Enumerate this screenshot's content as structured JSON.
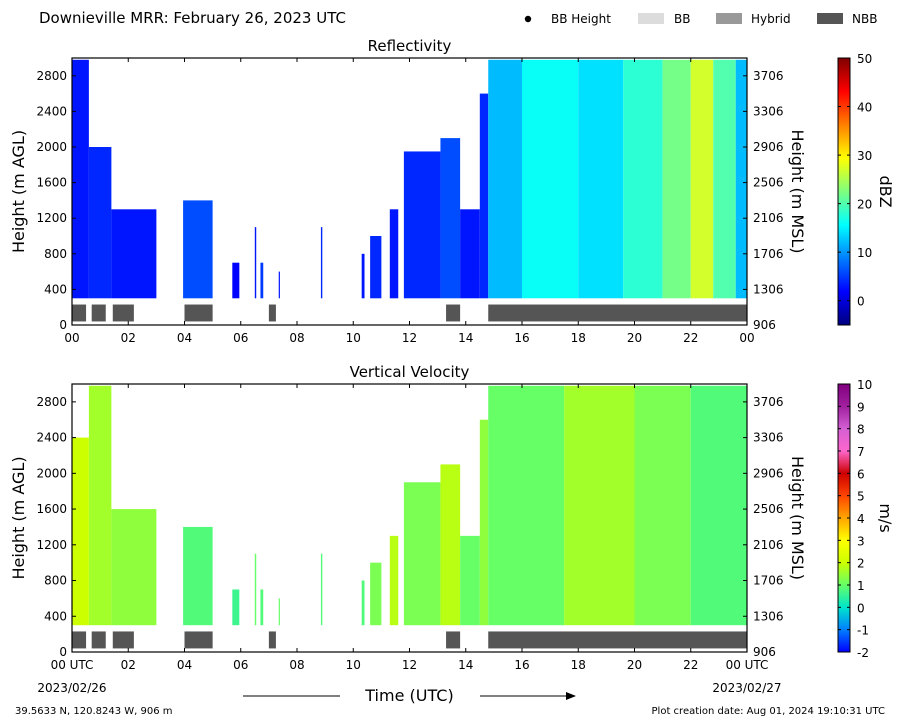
{
  "header": {
    "site_title": "Downieville MRR:  February 26, 2023 UTC",
    "legend": [
      {
        "label": "BB Height",
        "kind": "dot",
        "color": "#000000"
      },
      {
        "label": "BB",
        "kind": "bar",
        "color": "#dcdcdc"
      },
      {
        "label": "Hybrid",
        "kind": "bar",
        "color": "#999999"
      },
      {
        "label": "NBB",
        "kind": "bar",
        "color": "#555555"
      }
    ]
  },
  "footer": {
    "location": "39.5633 N, 120.8243 W, 906 m",
    "creation": "Plot creation date: Aug 01, 2024 19:10:31 UTC",
    "start_date": "2023/02/26",
    "end_date": "2023/02/27"
  },
  "chart_data": [
    {
      "type": "heatmap",
      "title": "Reflectivity",
      "ylabel": "Height (m AGL)",
      "y2label": "Height (m MSL)",
      "xlabel": "",
      "ylim": [
        0,
        3000
      ],
      "x_ticks": [
        "00",
        "02",
        "04",
        "06",
        "08",
        "10",
        "12",
        "14",
        "16",
        "18",
        "20",
        "22",
        "00"
      ],
      "y_ticks": [
        0,
        400,
        800,
        1200,
        1600,
        2000,
        2400,
        2800
      ],
      "y2_ticks": [
        906,
        1306,
        1706,
        2106,
        2506,
        2906,
        3306,
        3706
      ],
      "colorbar": {
        "label": "dBZ",
        "ticks": [
          0,
          10,
          20,
          30,
          40,
          50
        ],
        "min": -5,
        "max": 50
      },
      "colorbar_colors": [
        "#00007f",
        "#0000ff",
        "#007fff",
        "#00ffff",
        "#7fff7f",
        "#ffff00",
        "#ff7f00",
        "#ff0000",
        "#7f0000"
      ],
      "precip_blocks": [
        {
          "start": 0.0,
          "end": 6.0,
          "top": 3000,
          "value": 3
        },
        {
          "start": 6.0,
          "end": 14.0,
          "top": 2000,
          "value": 4
        },
        {
          "start": 14.0,
          "end": 30.0,
          "top": 1300,
          "value": 3
        },
        {
          "start": 39.5,
          "end": 50.0,
          "top": 1400,
          "value": 6
        },
        {
          "start": 57.0,
          "end": 59.5,
          "top": 700,
          "value": 2
        },
        {
          "start": 65.0,
          "end": 65.5,
          "top": 1100,
          "value": 3
        },
        {
          "start": 67.0,
          "end": 68.0,
          "top": 700,
          "value": 5
        },
        {
          "start": 73.5,
          "end": 73.8,
          "top": 600,
          "value": 3
        },
        {
          "start": 88.5,
          "end": 89.0,
          "top": 1100,
          "value": 4
        },
        {
          "start": 103.0,
          "end": 104.0,
          "top": 800,
          "value": 3
        },
        {
          "start": 106.0,
          "end": 110.0,
          "top": 1000,
          "value": 4
        },
        {
          "start": 113.0,
          "end": 116.0,
          "top": 1300,
          "value": 3
        },
        {
          "start": 118.0,
          "end": 131.0,
          "top": 1950,
          "value": 4
        },
        {
          "start": 131.0,
          "end": 138.0,
          "top": 2100,
          "value": 6
        },
        {
          "start": 138.0,
          "end": 145.0,
          "top": 1300,
          "value": 3
        },
        {
          "start": 145.0,
          "end": 148.0,
          "top": 2600,
          "value": 4
        },
        {
          "start": 148.0,
          "end": 160.0,
          "top": 3000,
          "value": 12
        },
        {
          "start": 160.0,
          "end": 180.0,
          "top": 3000,
          "value": 16
        },
        {
          "start": 180.0,
          "end": 196.0,
          "top": 3000,
          "value": 14
        },
        {
          "start": 196.0,
          "end": 210.0,
          "top": 3000,
          "value": 18
        },
        {
          "start": 210.0,
          "end": 220.0,
          "top": 3000,
          "value": 22
        },
        {
          "start": 220.0,
          "end": 228.0,
          "top": 3000,
          "value": 27
        },
        {
          "start": 228.0,
          "end": 236.0,
          "top": 3000,
          "value": 20
        },
        {
          "start": 236.0,
          "end": 240.0,
          "top": 3000,
          "value": 12
        }
      ],
      "bright_band_class": [
        {
          "start": 0.0,
          "end": 5.0,
          "type": "NBB"
        },
        {
          "start": 7.0,
          "end": 12.0,
          "type": "NBB"
        },
        {
          "start": 14.5,
          "end": 22.0,
          "type": "NBB"
        },
        {
          "start": 40.0,
          "end": 50.0,
          "type": "NBB"
        },
        {
          "start": 70.0,
          "end": 72.5,
          "type": "NBB"
        },
        {
          "start": 133.0,
          "end": 138.0,
          "type": "NBB"
        },
        {
          "start": 148.0,
          "end": 240.0,
          "type": "NBB"
        }
      ]
    },
    {
      "type": "heatmap",
      "title": "Vertical Velocity",
      "ylabel": "Height (m AGL)",
      "y2label": "Height (m MSL)",
      "xlabel": "Time (UTC)",
      "ylim": [
        0,
        3000
      ],
      "x_ticks": [
        "00 UTC",
        "02",
        "04",
        "06",
        "08",
        "10",
        "12",
        "14",
        "16",
        "18",
        "20",
        "22",
        "00 UTC"
      ],
      "y_ticks": [
        0,
        400,
        800,
        1200,
        1600,
        2000,
        2400,
        2800
      ],
      "y2_ticks": [
        906,
        1306,
        1706,
        2106,
        2506,
        2906,
        3306,
        3706
      ],
      "colorbar": {
        "label": "m/s",
        "ticks": [
          -2,
          -1,
          0,
          1,
          2,
          3,
          4,
          5,
          6,
          7,
          8,
          9,
          10
        ],
        "min": -2,
        "max": 10
      },
      "colorbar_colors": [
        "#0000ff",
        "#007fff",
        "#00e5cc",
        "#66ff66",
        "#ccff00",
        "#ffff00",
        "#ffa500",
        "#ff4500",
        "#cc0000",
        "#ff66cc",
        "#d45fd4",
        "#a020a0",
        "#800080"
      ],
      "precip_blocks": [
        {
          "start": 0.0,
          "end": 6.0,
          "top": 2400,
          "value": 2.0
        },
        {
          "start": 6.0,
          "end": 14.0,
          "top": 3000,
          "value": 1.6
        },
        {
          "start": 14.0,
          "end": 30.0,
          "top": 1600,
          "value": 1.4
        },
        {
          "start": 39.5,
          "end": 50.0,
          "top": 1400,
          "value": 0.8
        },
        {
          "start": 57.0,
          "end": 59.5,
          "top": 700,
          "value": 0.6
        },
        {
          "start": 65.0,
          "end": 65.5,
          "top": 1100,
          "value": 1.0
        },
        {
          "start": 67.0,
          "end": 68.0,
          "top": 700,
          "value": 0.8
        },
        {
          "start": 73.5,
          "end": 73.8,
          "top": 600,
          "value": 1.0
        },
        {
          "start": 88.5,
          "end": 89.0,
          "top": 1100,
          "value": 0.8
        },
        {
          "start": 103.0,
          "end": 104.0,
          "top": 800,
          "value": 0.8
        },
        {
          "start": 106.0,
          "end": 110.0,
          "top": 1000,
          "value": 1.2
        },
        {
          "start": 113.0,
          "end": 116.0,
          "top": 1300,
          "value": 1.8
        },
        {
          "start": 118.0,
          "end": 131.0,
          "top": 1900,
          "value": 1.2
        },
        {
          "start": 131.0,
          "end": 138.0,
          "top": 2100,
          "value": 1.8
        },
        {
          "start": 138.0,
          "end": 145.0,
          "top": 1300,
          "value": 1.0
        },
        {
          "start": 145.0,
          "end": 148.0,
          "top": 2600,
          "value": 1.4
        },
        {
          "start": 148.0,
          "end": 175.0,
          "top": 3000,
          "value": 1.0
        },
        {
          "start": 175.0,
          "end": 200.0,
          "top": 3000,
          "value": 1.6
        },
        {
          "start": 200.0,
          "end": 220.0,
          "top": 3000,
          "value": 1.2
        },
        {
          "start": 220.0,
          "end": 240.0,
          "top": 3000,
          "value": 0.8
        }
      ],
      "bright_band_class": [
        {
          "start": 0.0,
          "end": 5.0,
          "type": "NBB"
        },
        {
          "start": 7.0,
          "end": 12.0,
          "type": "NBB"
        },
        {
          "start": 14.5,
          "end": 22.0,
          "type": "NBB"
        },
        {
          "start": 40.0,
          "end": 50.0,
          "type": "NBB"
        },
        {
          "start": 70.0,
          "end": 72.5,
          "type": "NBB"
        },
        {
          "start": 133.0,
          "end": 138.0,
          "type": "NBB"
        },
        {
          "start": 148.0,
          "end": 240.0,
          "type": "NBB"
        }
      ]
    }
  ]
}
